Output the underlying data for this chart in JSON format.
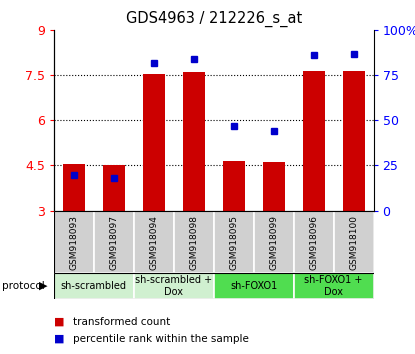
{
  "title": "GDS4963 / 212226_s_at",
  "samples": [
    "GSM918093",
    "GSM918097",
    "GSM918094",
    "GSM918098",
    "GSM918095",
    "GSM918099",
    "GSM918096",
    "GSM918100"
  ],
  "bar_values": [
    4.55,
    4.5,
    7.55,
    7.6,
    4.65,
    4.6,
    7.65,
    7.65
  ],
  "percentile_values": [
    20,
    18,
    82,
    84,
    47,
    44,
    86,
    87
  ],
  "bar_bottom": 3.0,
  "ylim_left": [
    3,
    9
  ],
  "ylim_right": [
    0,
    100
  ],
  "yticks_left": [
    3,
    4.5,
    6,
    7.5,
    9
  ],
  "ytick_labels_left": [
    "3",
    "4.5",
    "6",
    "7.5",
    "9"
  ],
  "yticks_right": [
    0,
    25,
    50,
    75,
    100
  ],
  "ytick_labels_right": [
    "0",
    "25",
    "50",
    "75",
    "100%"
  ],
  "grid_lines": [
    4.5,
    6,
    7.5
  ],
  "bar_color": "#cc0000",
  "dot_color": "#0000cc",
  "bar_width": 0.55,
  "sample_bg_color": "#d0d0d0",
  "protocol_light_color": "#d0f0d0",
  "protocol_dark_color": "#50dd50",
  "protocol_groups": [
    {
      "label": "sh-scrambled",
      "start": 0,
      "end": 1,
      "light": true
    },
    {
      "label": "sh-scrambled +\nDox",
      "start": 2,
      "end": 3,
      "light": true
    },
    {
      "label": "sh-FOXO1",
      "start": 4,
      "end": 5,
      "light": false
    },
    {
      "label": "sh-FOXO1 +\nDox",
      "start": 6,
      "end": 7,
      "light": false
    }
  ],
  "legend_items": [
    {
      "label": "transformed count",
      "color": "#cc0000"
    },
    {
      "label": "percentile rank within the sample",
      "color": "#0000cc"
    }
  ]
}
